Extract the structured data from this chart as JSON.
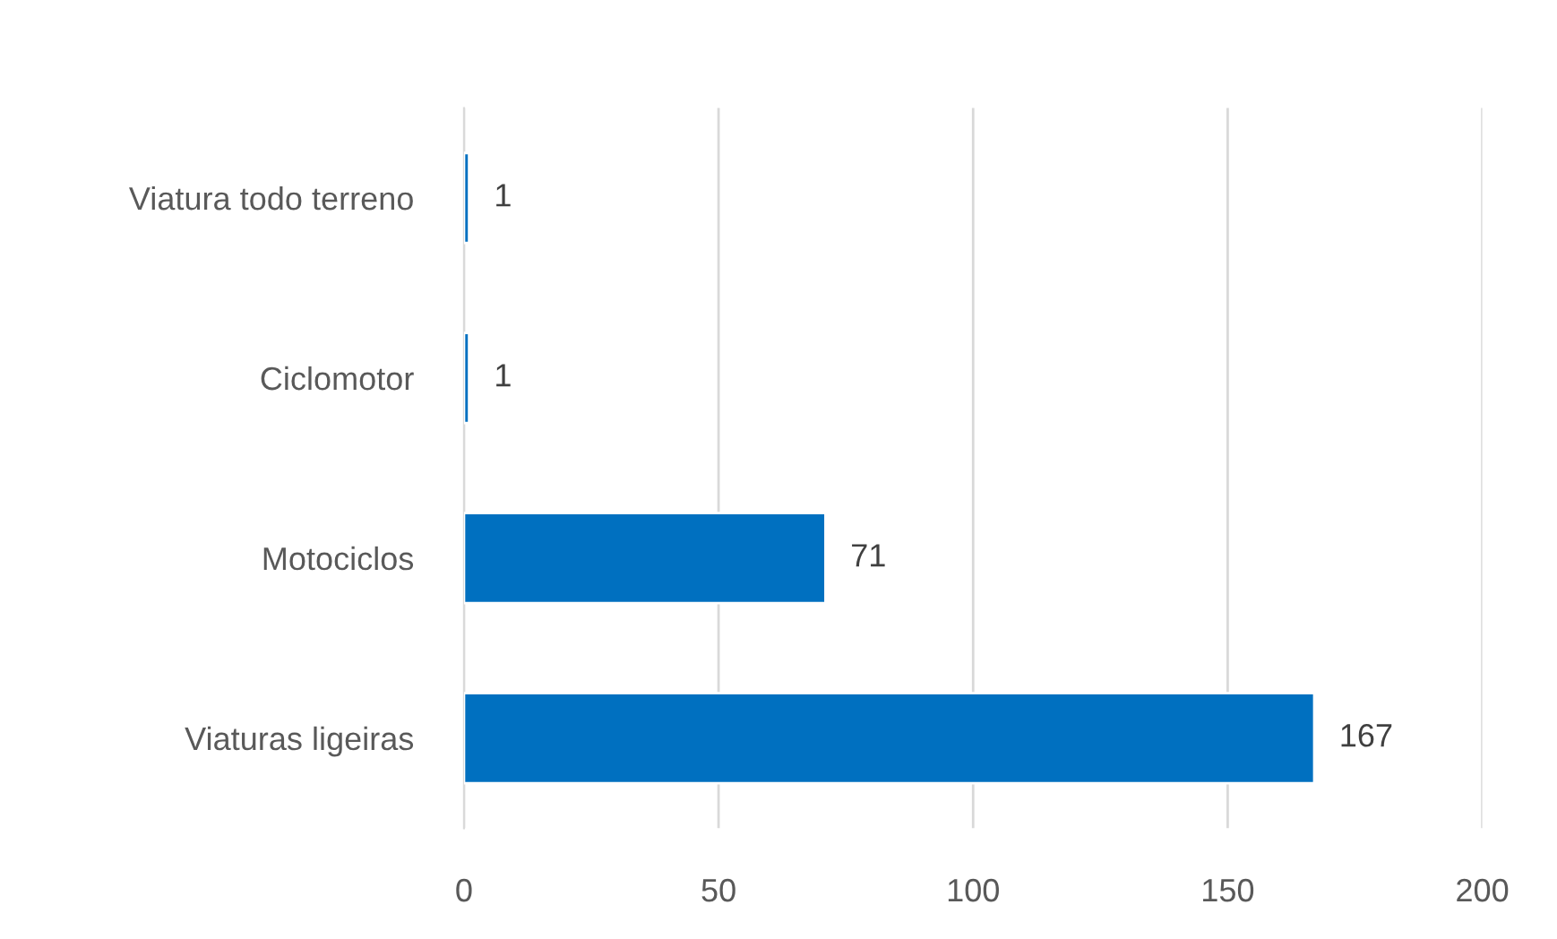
{
  "chart_data": {
    "type": "bar",
    "orientation": "horizontal",
    "categories": [
      "Viatura todo terreno",
      "Ciclomotor",
      "Motociclos",
      "Viaturas ligeiras"
    ],
    "values": [
      1,
      1,
      71,
      167
    ],
    "color": "#0070c0",
    "xlim": [
      0,
      200
    ],
    "xticks": [
      0,
      50,
      100,
      150,
      200
    ],
    "grid": "x",
    "data_labels": true
  }
}
